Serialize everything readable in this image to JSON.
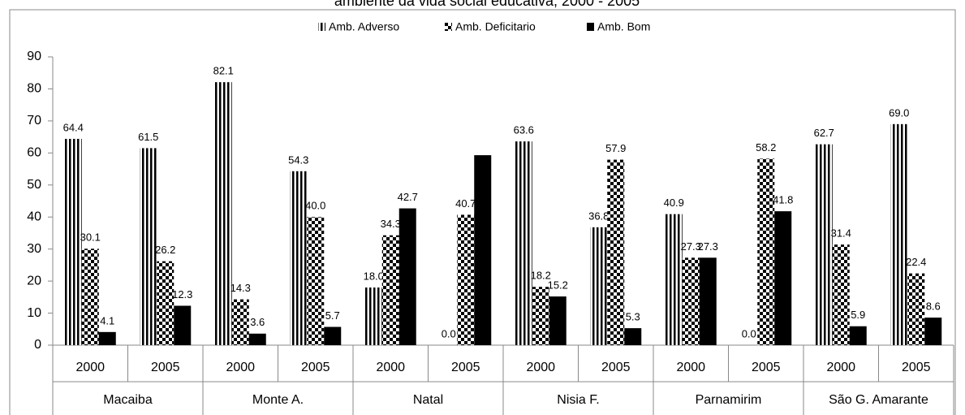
{
  "chart_data": {
    "type": "bar",
    "title": "ambiente da vida social educativa, 2000 - 2005",
    "categories": [
      "2000",
      "2005",
      "2000",
      "2005",
      "2000",
      "2005",
      "2000",
      "2005",
      "2000",
      "2005",
      "2000",
      "2005"
    ],
    "groups": [
      "Macaiba",
      "Monte A.",
      "Natal",
      "Nisia F.",
      "Parnamirim",
      "São G. Amarante"
    ],
    "series": [
      {
        "name": "Amb. Adverso",
        "color": "#000000",
        "pattern": "vertical-stripes",
        "values": [
          64.4,
          61.5,
          82.1,
          54.3,
          18.0,
          0.0,
          63.6,
          36.8,
          40.9,
          0.0,
          62.7,
          69.0
        ],
        "value_labels": [
          "64.4",
          "61.5",
          "82.1",
          "54.3",
          "18.0",
          "0.0",
          "63.6",
          "36.8",
          "40.9",
          "0.0",
          "62.7",
          "69.0"
        ]
      },
      {
        "name": "Amb. Deficitario",
        "color": "#000000",
        "pattern": "checker",
        "values": [
          30.1,
          26.2,
          14.3,
          40.0,
          34.3,
          40.7,
          18.2,
          57.9,
          27.3,
          58.2,
          31.4,
          22.4
        ],
        "value_labels": [
          "30.1",
          "26.2",
          "14.3",
          "40.0",
          "34.3",
          "40.7",
          "18.2",
          "57.9",
          "27.3",
          "58.2",
          "31.4",
          "22.4"
        ]
      },
      {
        "name": "Amb. Bom",
        "color": "#000000",
        "pattern": "solid",
        "values": [
          4.1,
          12.3,
          3.6,
          5.7,
          42.7,
          59.3,
          15.2,
          5.3,
          27.3,
          41.8,
          5.9,
          8.6
        ],
        "value_labels": [
          "4.1",
          "12.3",
          "3.6",
          "5.7",
          "42.7",
          null,
          "15.2",
          "5.3",
          "27.3",
          "41.8",
          "5.9",
          "8.6"
        ]
      }
    ],
    "ylim": [
      0,
      90
    ],
    "yticks": [
      0,
      10,
      20,
      30,
      40,
      50,
      60,
      70,
      80,
      90
    ],
    "grid": false,
    "legend": "top"
  }
}
